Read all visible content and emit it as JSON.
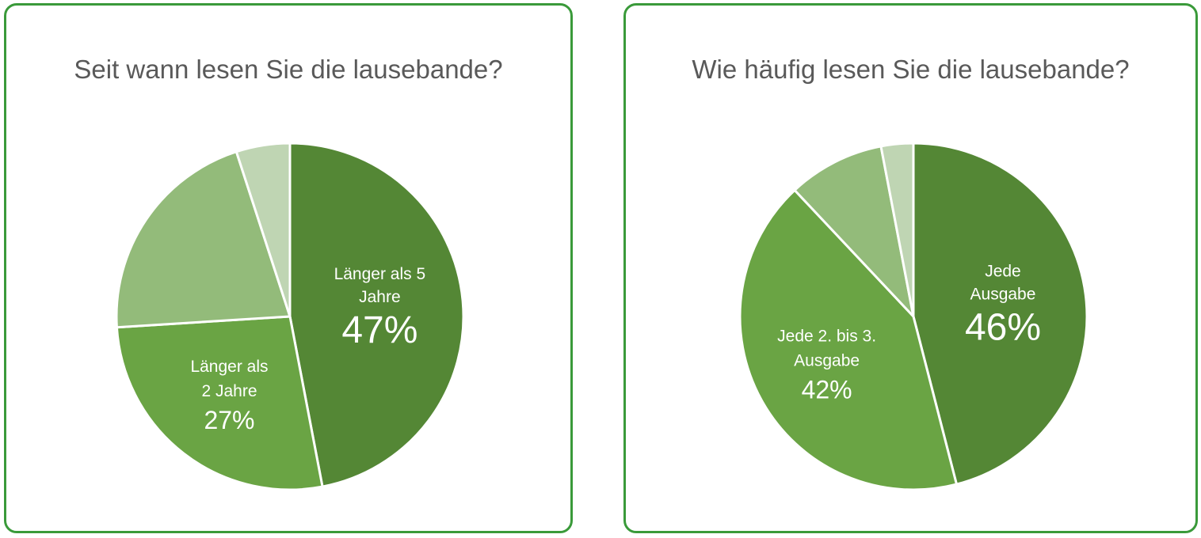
{
  "chart_data": [
    {
      "type": "pie",
      "title": "Seit wann lesen Sie die lausebande?",
      "slices": [
        {
          "label": "Länger als 5 Jahre",
          "label_lines": [
            "Länger als 5",
            "Jahre"
          ],
          "value": 47,
          "value_label": "47%",
          "color": "#548735"
        },
        {
          "label": "Länger als 2 Jahre",
          "label_lines": [
            "Länger als",
            "2 Jahre"
          ],
          "value": 27,
          "value_label": "27%",
          "color": "#6aa444"
        },
        {
          "label": "",
          "label_lines": [],
          "value": 21,
          "value_label": "",
          "color": "#93bb7a"
        },
        {
          "label": "",
          "label_lines": [],
          "value": 5,
          "value_label": "",
          "color": "#bfd5b3"
        }
      ]
    },
    {
      "type": "pie",
      "title": "Wie häufig lesen Sie die lausebande?",
      "slices": [
        {
          "label": "Jede Ausgabe",
          "label_lines": [
            "Jede",
            "Ausgabe"
          ],
          "value": 46,
          "value_label": "46%",
          "color": "#548735"
        },
        {
          "label": "Jede 2. bis 3. Ausgabe",
          "label_lines": [
            "Jede 2. bis 3.",
            "Ausgabe"
          ],
          "value": 42,
          "value_label": "42%",
          "color": "#6aa444"
        },
        {
          "label": "",
          "label_lines": [],
          "value": 9,
          "value_label": "",
          "color": "#93bb7a"
        },
        {
          "label": "",
          "label_lines": [],
          "value": 3,
          "value_label": "",
          "color": "#bfd5b3"
        }
      ]
    }
  ]
}
